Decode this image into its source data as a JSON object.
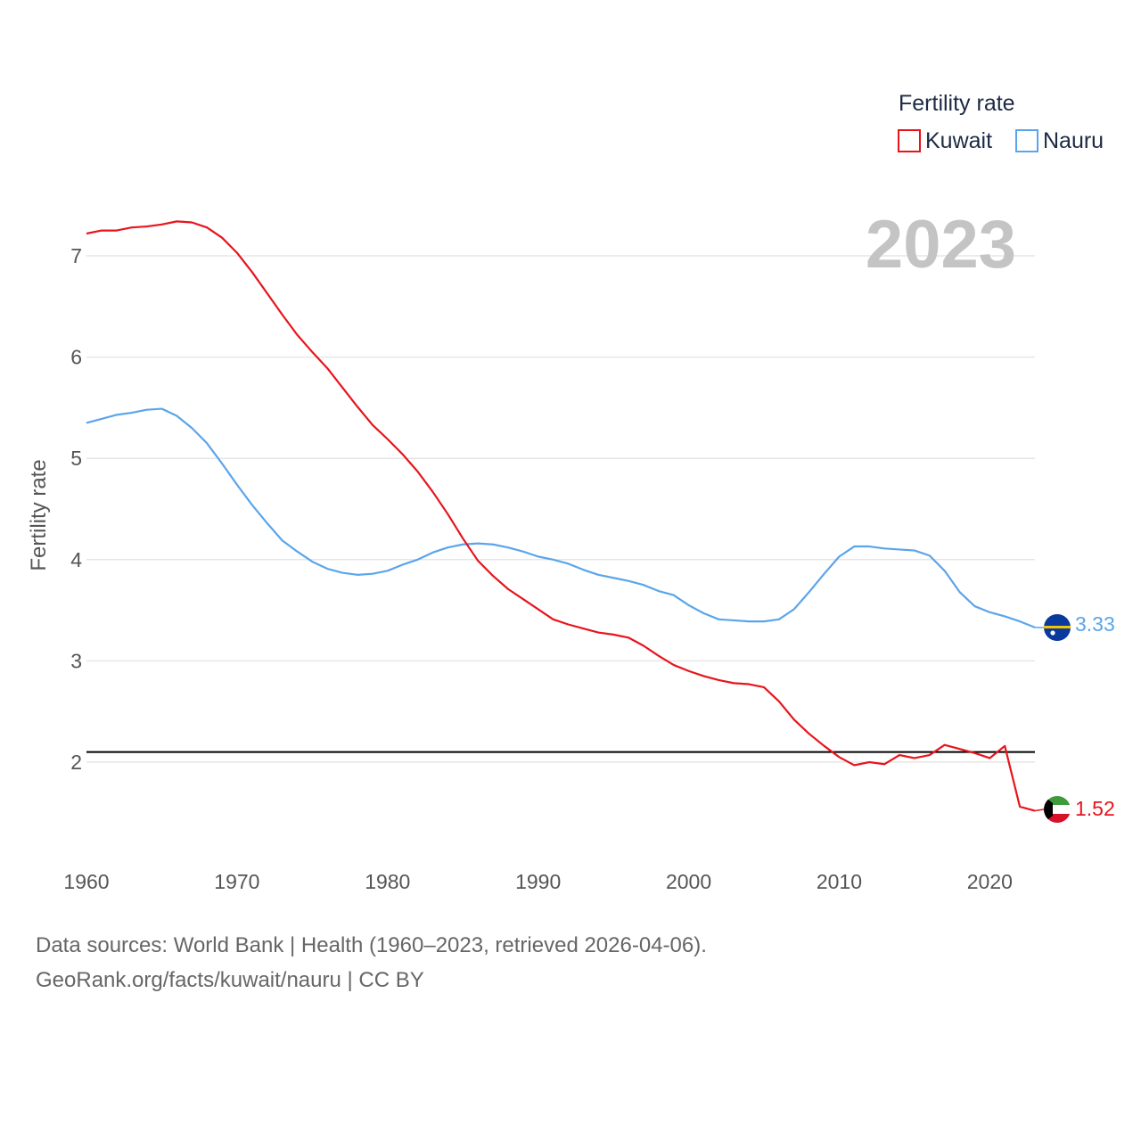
{
  "chart_data": {
    "type": "line",
    "ylabel": "Fertility rate",
    "legend_title": "Fertility rate",
    "legend_position": "top-right",
    "year_label": "2023",
    "xlim": [
      1960,
      2023
    ],
    "ylim": [
      1.2,
      7.6
    ],
    "x_ticks": [
      1960,
      1970,
      1980,
      1990,
      2000,
      2010,
      2020
    ],
    "y_ticks": [
      2,
      3,
      4,
      5,
      6,
      7
    ],
    "reference_line": 2.1,
    "series": [
      {
        "name": "Kuwait",
        "color": "#e8141c",
        "flag": "kuwait-flag-icon",
        "end_label": "1.52",
        "x": [
          1960,
          1961,
          1962,
          1963,
          1964,
          1965,
          1966,
          1967,
          1968,
          1969,
          1970,
          1971,
          1972,
          1973,
          1974,
          1975,
          1976,
          1977,
          1978,
          1979,
          1980,
          1981,
          1982,
          1983,
          1984,
          1985,
          1986,
          1987,
          1988,
          1989,
          1990,
          1991,
          1992,
          1993,
          1994,
          1995,
          1996,
          1997,
          1998,
          1999,
          2000,
          2001,
          2002,
          2003,
          2004,
          2005,
          2006,
          2007,
          2008,
          2009,
          2010,
          2011,
          2012,
          2013,
          2014,
          2015,
          2016,
          2017,
          2018,
          2019,
          2020,
          2021,
          2022,
          2023
        ],
        "values": [
          7.22,
          7.25,
          7.25,
          7.28,
          7.29,
          7.31,
          7.34,
          7.33,
          7.28,
          7.18,
          7.03,
          6.84,
          6.63,
          6.42,
          6.22,
          6.05,
          5.89,
          5.7,
          5.51,
          5.33,
          5.19,
          5.04,
          4.87,
          4.67,
          4.45,
          4.21,
          3.99,
          3.84,
          3.71,
          3.61,
          3.51,
          3.41,
          3.36,
          3.32,
          3.28,
          3.26,
          3.23,
          3.15,
          3.05,
          2.96,
          2.9,
          2.85,
          2.81,
          2.78,
          2.77,
          2.74,
          2.6,
          2.42,
          2.28,
          2.16,
          2.05,
          1.97,
          2.0,
          1.98,
          2.07,
          2.04,
          2.07,
          2.17,
          2.13,
          2.09,
          2.04,
          2.16,
          1.56,
          1.52
        ]
      },
      {
        "name": "Nauru",
        "color": "#5aa5ea",
        "flag": "nauru-flag-icon",
        "end_label": "3.33",
        "x": [
          1960,
          1961,
          1962,
          1963,
          1964,
          1965,
          1966,
          1967,
          1968,
          1969,
          1970,
          1971,
          1972,
          1973,
          1974,
          1975,
          1976,
          1977,
          1978,
          1979,
          1980,
          1981,
          1982,
          1983,
          1984,
          1985,
          1986,
          1987,
          1988,
          1989,
          1990,
          1991,
          1992,
          1993,
          1994,
          1995,
          1996,
          1997,
          1998,
          1999,
          2000,
          2001,
          2002,
          2003,
          2004,
          2005,
          2006,
          2007,
          2008,
          2009,
          2010,
          2011,
          2012,
          2013,
          2014,
          2015,
          2016,
          2017,
          2018,
          2019,
          2020,
          2021,
          2022,
          2023
        ],
        "values": [
          5.35,
          5.39,
          5.43,
          5.45,
          5.48,
          5.49,
          5.42,
          5.3,
          5.15,
          4.95,
          4.74,
          4.54,
          4.36,
          4.19,
          4.08,
          3.98,
          3.91,
          3.87,
          3.85,
          3.86,
          3.89,
          3.95,
          4.0,
          4.07,
          4.12,
          4.15,
          4.16,
          4.15,
          4.12,
          4.08,
          4.03,
          4.0,
          3.96,
          3.9,
          3.85,
          3.82,
          3.79,
          3.75,
          3.69,
          3.65,
          3.55,
          3.47,
          3.41,
          3.4,
          3.39,
          3.39,
          3.41,
          3.51,
          3.68,
          3.86,
          4.03,
          4.13,
          4.13,
          4.11,
          4.1,
          4.09,
          4.04,
          3.89,
          3.68,
          3.54,
          3.48,
          3.44,
          3.39,
          3.33
        ]
      }
    ]
  },
  "footer": {
    "line1": "Data sources: World Bank | Health (1960–2023, retrieved 2026-04-06).",
    "line2": "GeoRank.org/facts/kuwait/nauru | CC BY"
  }
}
